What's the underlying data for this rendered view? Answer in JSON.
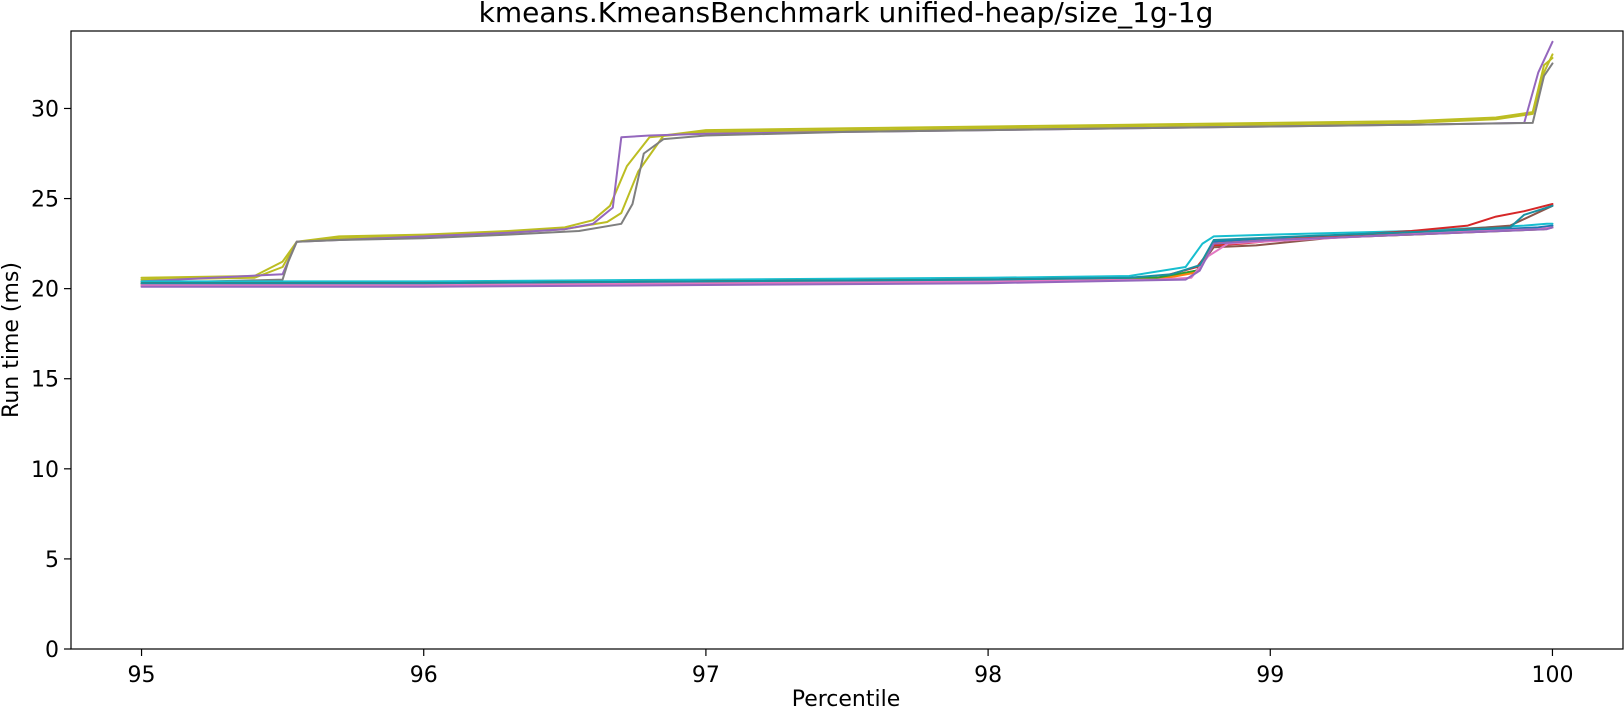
{
  "chart_data": {
    "type": "line",
    "title": "kmeans.KmeansBenchmark unified-heap/size_1g-1g",
    "xlabel": "Percentile",
    "ylabel": "Run time (ms)",
    "xlim": [
      94.75,
      100.25
    ],
    "ylim": [
      0,
      34.3
    ],
    "xticks": [
      95,
      96,
      97,
      98,
      99,
      100
    ],
    "xtick_labels": [
      "95",
      "96",
      "97",
      "98",
      "99",
      "100"
    ],
    "yticks": [
      0,
      5,
      10,
      15,
      20,
      25,
      30
    ],
    "ytick_labels": [
      "0",
      "5",
      "10",
      "15",
      "20",
      "25",
      "30"
    ],
    "grid": false,
    "legend": "none",
    "series": [
      {
        "color": "#bcbd22",
        "x": [
          95,
          95.4,
          95.5,
          95.55,
          95.7,
          96,
          96.3,
          96.5,
          96.6,
          96.66,
          96.72,
          96.8,
          97,
          97.5,
          98,
          98.5,
          99,
          99.5,
          99.8,
          99.93,
          99.97,
          100
        ],
        "y": [
          20.6,
          20.7,
          21.5,
          22.6,
          22.9,
          23.0,
          23.2,
          23.4,
          23.8,
          24.6,
          26.8,
          28.4,
          28.7,
          28.8,
          28.9,
          29.0,
          29.1,
          29.2,
          29.4,
          29.7,
          32.0,
          33.0
        ]
      },
      {
        "color": "#bcbd22",
        "x": [
          95,
          95.4,
          95.5,
          95.55,
          95.7,
          96,
          96.3,
          96.5,
          96.65,
          96.7,
          96.76,
          96.85,
          97,
          97.5,
          98,
          98.5,
          99,
          99.5,
          99.8,
          99.93,
          99.97,
          100
        ],
        "y": [
          20.5,
          20.6,
          21.2,
          22.6,
          22.8,
          22.9,
          23.1,
          23.3,
          23.7,
          24.2,
          26.5,
          28.5,
          28.8,
          28.9,
          29.0,
          29.1,
          29.2,
          29.3,
          29.5,
          29.8,
          32.4,
          32.8
        ]
      },
      {
        "color": "#9467bd",
        "x": [
          95,
          95.5,
          95.55,
          95.7,
          96,
          96.3,
          96.5,
          96.6,
          96.67,
          96.7,
          96.8,
          97,
          97.5,
          98,
          98.5,
          99,
          99.5,
          99.9,
          99.95,
          100
        ],
        "y": [
          20.4,
          20.8,
          22.6,
          22.7,
          22.9,
          23.1,
          23.3,
          23.6,
          24.5,
          28.4,
          28.5,
          28.6,
          28.7,
          28.8,
          28.9,
          29.0,
          29.1,
          29.2,
          32.0,
          33.7
        ]
      },
      {
        "color": "#7f7f7f",
        "x": [
          95,
          95.5,
          95.52,
          95.55,
          95.7,
          96,
          96.3,
          96.55,
          96.7,
          96.74,
          96.78,
          96.85,
          97,
          97.5,
          98,
          98.5,
          99,
          99.5,
          99.93,
          99.97,
          100
        ],
        "y": [
          20.3,
          20.5,
          21.5,
          22.6,
          22.7,
          22.8,
          23.0,
          23.2,
          23.6,
          24.7,
          27.5,
          28.3,
          28.5,
          28.7,
          28.8,
          28.9,
          29.0,
          29.1,
          29.2,
          31.8,
          32.5
        ]
      },
      {
        "color": "#17becf",
        "x": [
          95,
          96,
          97,
          98,
          98.5,
          98.7,
          98.76,
          98.8,
          99,
          99.5,
          99.9,
          99.98,
          100
        ],
        "y": [
          20.4,
          20.4,
          20.5,
          20.6,
          20.7,
          21.2,
          22.5,
          22.9,
          23.0,
          23.2,
          23.5,
          23.6,
          23.6
        ]
      },
      {
        "color": "#1f77b4",
        "x": [
          95,
          96,
          97,
          98,
          98.6,
          98.74,
          98.8,
          99,
          99.5,
          99.95,
          100
        ],
        "y": [
          20.3,
          20.3,
          20.4,
          20.5,
          20.6,
          21.0,
          22.6,
          22.8,
          23.1,
          23.4,
          23.5
        ]
      },
      {
        "color": "#d62728",
        "x": [
          95,
          96,
          97,
          98,
          98.6,
          98.74,
          98.8,
          98.9,
          99.1,
          99.5,
          99.7,
          99.8,
          99.9,
          100
        ],
        "y": [
          20.3,
          20.3,
          20.4,
          20.5,
          20.6,
          21.2,
          22.4,
          22.5,
          22.8,
          23.2,
          23.5,
          24.0,
          24.3,
          24.7
        ]
      },
      {
        "color": "#8c564b",
        "x": [
          95,
          96,
          97,
          98,
          98.6,
          98.74,
          98.8,
          98.95,
          99.2,
          99.6,
          99.85,
          100
        ],
        "y": [
          20.2,
          20.2,
          20.3,
          20.4,
          20.5,
          21.0,
          22.3,
          22.4,
          22.8,
          23.2,
          23.5,
          24.6
        ]
      },
      {
        "color": "#2ca02c",
        "x": [
          95,
          96,
          97,
          98,
          98.6,
          98.74,
          98.8,
          99,
          99.5,
          99.97,
          100
        ],
        "y": [
          20.3,
          20.3,
          20.4,
          20.5,
          20.6,
          21.0,
          22.5,
          22.7,
          23.0,
          23.3,
          23.4
        ]
      },
      {
        "color": "#ff7f0e",
        "x": [
          95,
          96,
          97,
          98,
          98.6,
          98.74,
          98.8,
          99,
          99.5,
          99.97,
          100
        ],
        "y": [
          20.2,
          20.2,
          20.3,
          20.4,
          20.5,
          20.9,
          22.5,
          22.7,
          23.0,
          23.3,
          23.4
        ]
      },
      {
        "color": "#e377c2",
        "x": [
          95,
          96,
          97,
          98,
          98.6,
          98.72,
          98.78,
          98.85,
          99.2,
          99.6,
          99.95,
          100
        ],
        "y": [
          20.2,
          20.2,
          20.3,
          20.4,
          20.5,
          20.6,
          21.8,
          22.5,
          22.8,
          23.1,
          23.3,
          23.4
        ]
      },
      {
        "color": "#1a8fa0",
        "x": [
          95,
          96,
          97,
          98,
          98.5,
          98.65,
          98.75,
          98.8,
          99.1,
          99.6,
          99.85,
          99.9,
          100
        ],
        "y": [
          20.3,
          20.3,
          20.4,
          20.5,
          20.6,
          20.8,
          21.3,
          22.7,
          22.9,
          23.2,
          23.4,
          24.1,
          24.6
        ]
      },
      {
        "color": "#9467bd",
        "x": [
          95,
          96,
          97,
          98,
          98.7,
          98.75,
          98.8,
          99,
          99.5,
          99.98,
          100
        ],
        "y": [
          20.1,
          20.1,
          20.2,
          20.3,
          20.5,
          21.0,
          22.5,
          22.7,
          23.0,
          23.3,
          23.4
        ]
      }
    ]
  }
}
